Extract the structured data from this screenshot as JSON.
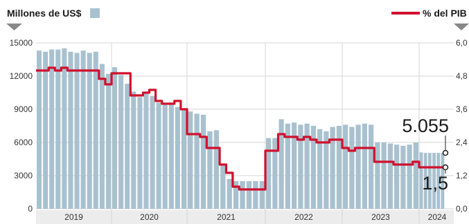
{
  "chart_data": {
    "type": "bar+line",
    "left_axis_title": "Millones de US$",
    "right_axis_title": "% del PIB",
    "left_ylim": [
      0,
      15000
    ],
    "left_ticks": [
      "15000",
      "12000",
      "9000",
      "6000",
      "3000",
      "0"
    ],
    "right_ylim": [
      0,
      6.0
    ],
    "right_ticks": [
      "6,0",
      "4,8",
      "3,6",
      "2,4",
      "1,2",
      "0,0"
    ],
    "x_years": [
      "2019",
      "2020",
      "2021",
      "2022",
      "2023",
      "2024"
    ],
    "bars_per_year": [
      12,
      12,
      12,
      12,
      12,
      6
    ],
    "bar_values": [
      14300,
      14200,
      14400,
      14400,
      14500,
      14200,
      14100,
      14300,
      14100,
      14200,
      13100,
      12200,
      12800,
      12100,
      11300,
      10600,
      10100,
      10400,
      10200,
      9600,
      9400,
      9500,
      9200,
      9000,
      8800,
      8600,
      8500,
      7000,
      7100,
      4000,
      2700,
      2500,
      2500,
      2500,
      2500,
      2500,
      6400,
      6400,
      8100,
      7700,
      7800,
      7600,
      7700,
      7500,
      7200,
      7000,
      7400,
      7500,
      7600,
      7400,
      7600,
      7700,
      7600,
      6000,
      6000,
      5900,
      5800,
      5700,
      5800,
      6000,
      5100,
      5050,
      5055,
      5055,
      5055,
      5055
    ],
    "line_values": [
      5.0,
      5.0,
      5.1,
      5.0,
      5.1,
      5.0,
      5.0,
      5.0,
      5.0,
      5.0,
      4.7,
      4.5,
      4.9,
      4.9,
      4.9,
      4.1,
      4.1,
      4.2,
      4.3,
      3.9,
      3.8,
      3.8,
      3.9,
      3.6,
      2.7,
      2.7,
      2.6,
      2.2,
      2.2,
      1.6,
      1.3,
      0.8,
      0.7,
      0.7,
      0.7,
      0.7,
      2.1,
      2.1,
      2.7,
      2.6,
      2.6,
      2.5,
      2.6,
      2.5,
      2.4,
      2.4,
      2.5,
      2.5,
      2.2,
      2.1,
      2.2,
      2.2,
      2.2,
      1.7,
      1.7,
      1.7,
      1.6,
      1.6,
      1.6,
      1.7,
      1.5,
      1.5,
      1.5,
      1.5,
      1.5,
      1.5
    ],
    "annotations": [
      {
        "text": "5.055",
        "series": "bars",
        "value": 5055
      },
      {
        "text": "1,5",
        "series": "line",
        "value": 1.5
      }
    ],
    "colors": {
      "bars": "#a9c1cf",
      "line": "#d0102e",
      "grid": "#d5d5d5",
      "axis_band": "#ececec",
      "triangle": "#888888"
    }
  }
}
